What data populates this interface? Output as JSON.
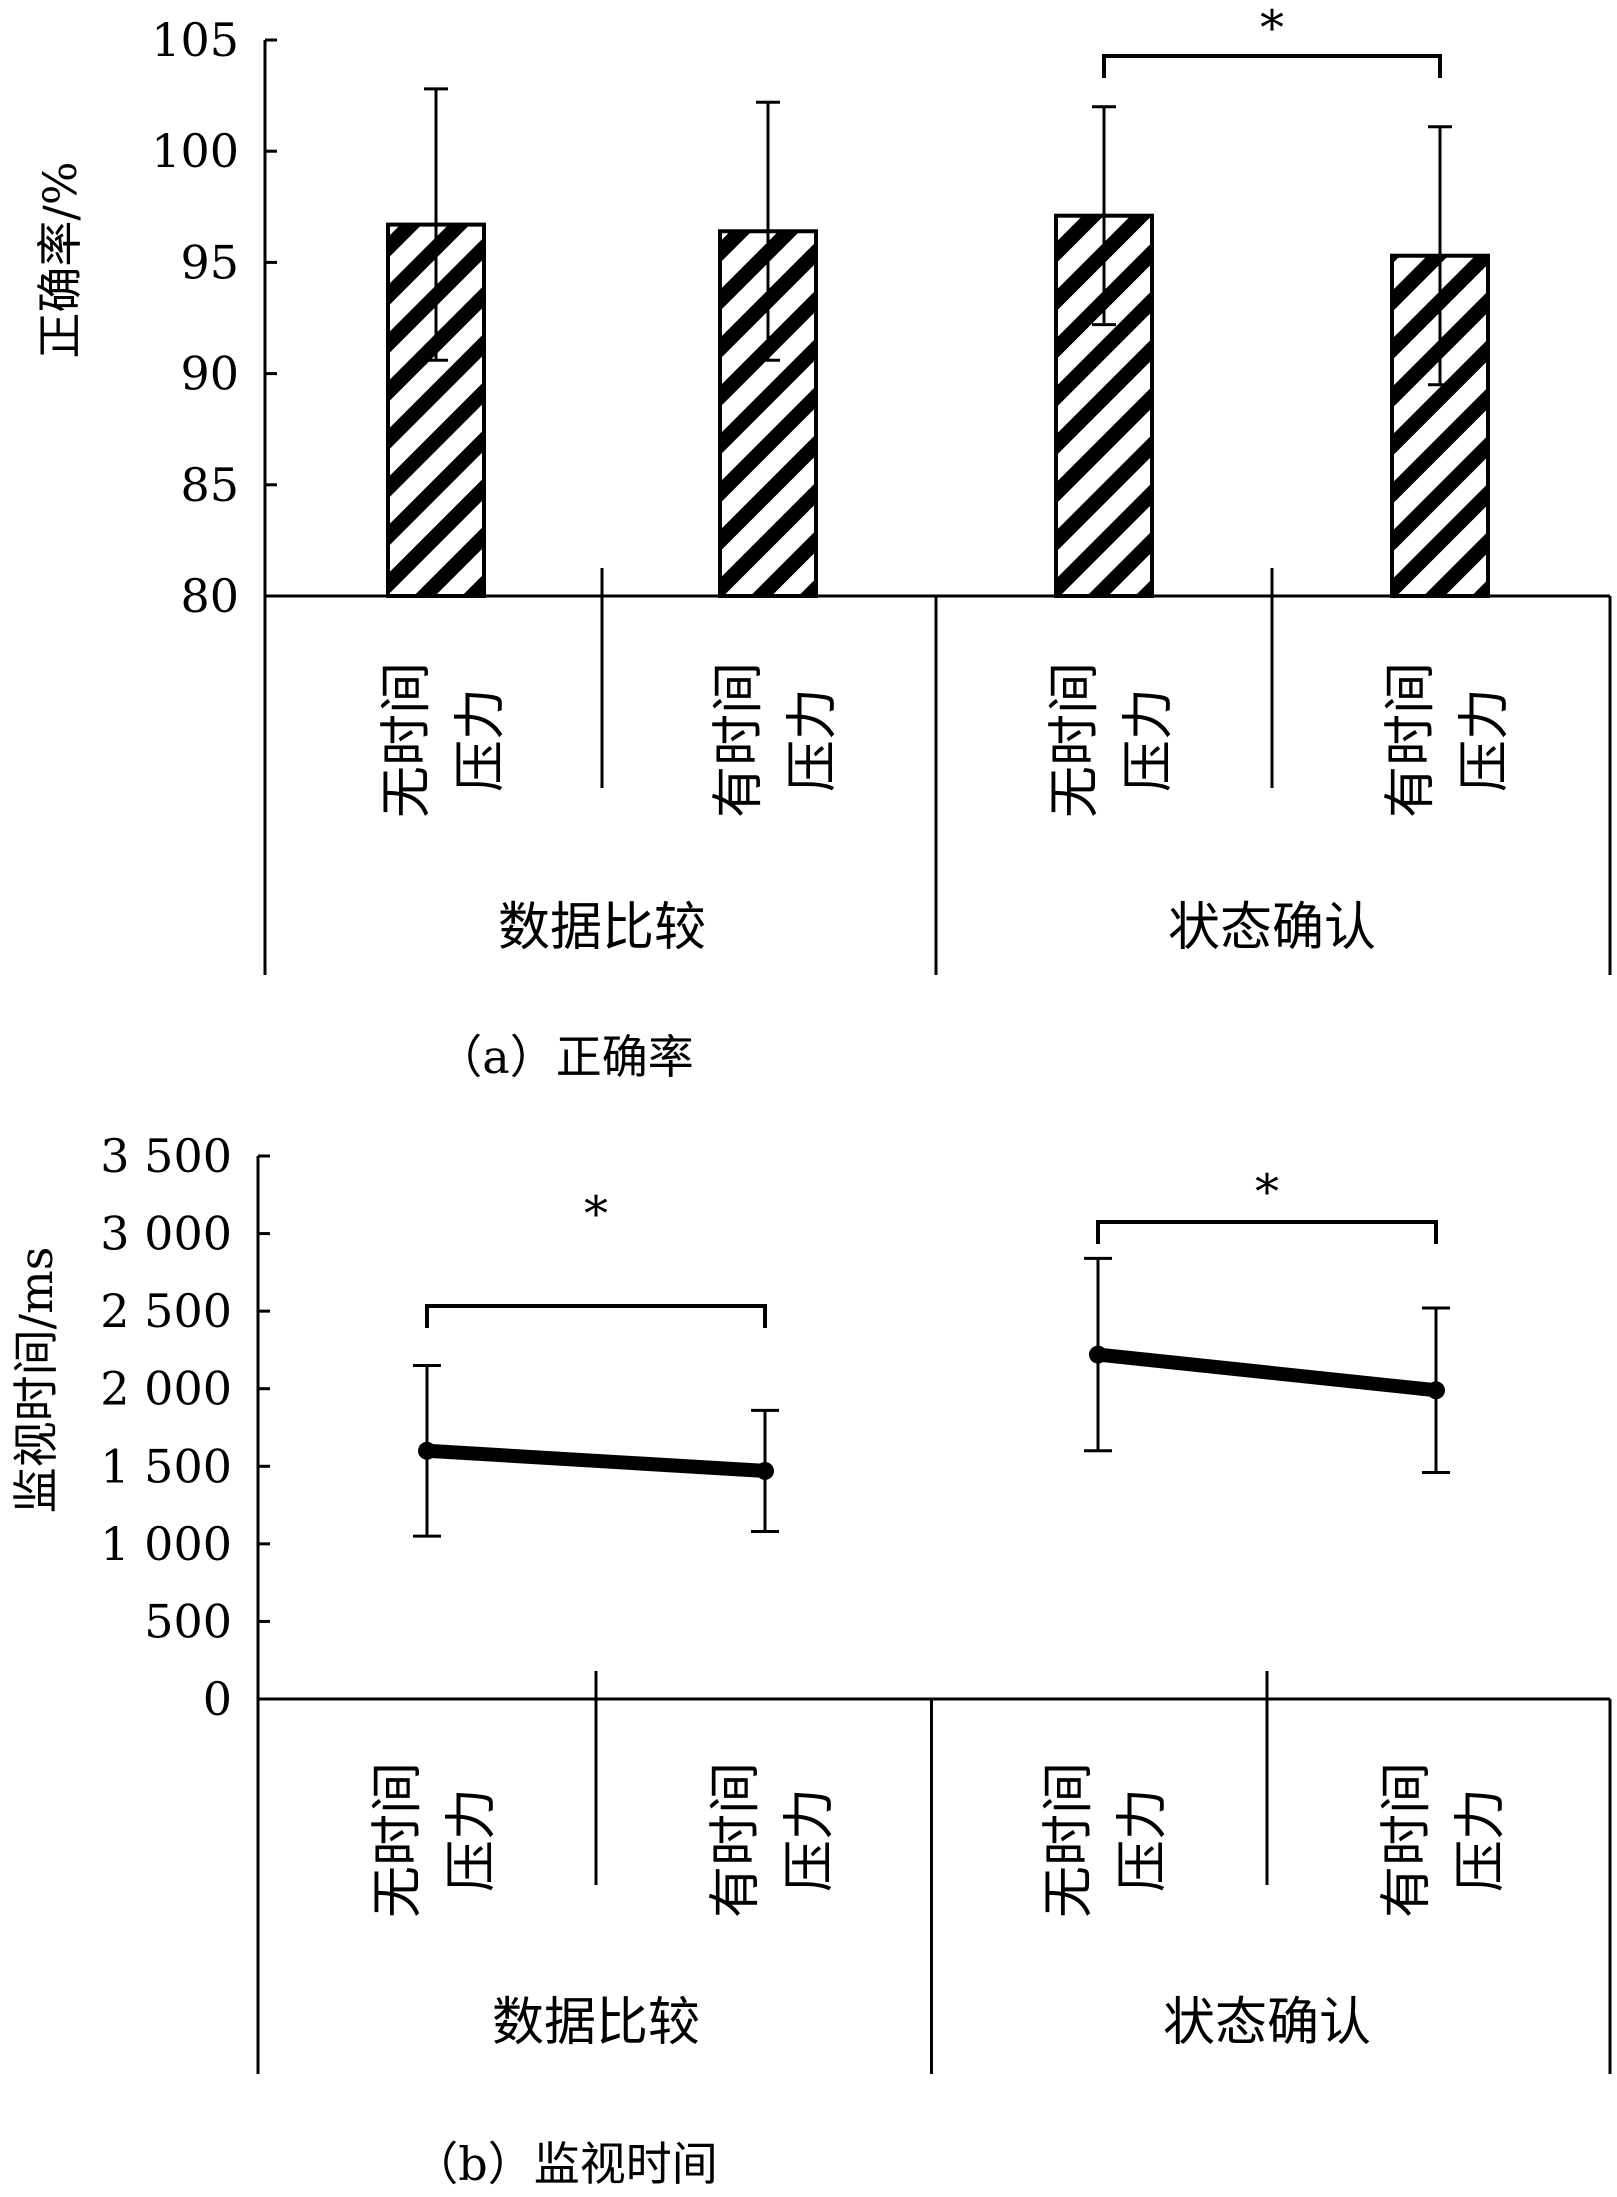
{
  "chart_data": [
    {
      "type": "bar",
      "caption": "（a）正确率",
      "ylabel": "正确率/%",
      "ylim": [
        80,
        105
      ],
      "yticks": [
        80,
        85,
        90,
        95,
        100,
        105
      ],
      "ytick_labels": [
        "80",
        "85",
        "90",
        "95",
        "100",
        "105"
      ],
      "groups": [
        {
          "label": "数据比较",
          "conditions": [
            "无时间\n压力",
            "有时间\n压力"
          ]
        },
        {
          "label": "状态确认",
          "conditions": [
            "无时间\n压力",
            "有时间\n压力"
          ]
        }
      ],
      "values": [
        96.7,
        96.4,
        97.1,
        95.3
      ],
      "errors": [
        6.1,
        5.8,
        4.9,
        5.8
      ],
      "significance": [
        {
          "between": [
            2,
            3
          ],
          "label": "*"
        }
      ],
      "bar_pattern": "diagonal-hatch",
      "grid": false
    },
    {
      "type": "line",
      "caption": "（b）监视时间",
      "ylabel": "监视时间/ms",
      "ylim": [
        0,
        3500
      ],
      "yticks": [
        0,
        500,
        1000,
        1500,
        2000,
        2500,
        3000,
        3500
      ],
      "ytick_labels": [
        "0",
        "500",
        "1 000",
        "1 500",
        "2 000",
        "2 500",
        "3 000",
        "3 500"
      ],
      "groups": [
        {
          "label": "数据比较",
          "conditions": [
            "无时间\n压力",
            "有时间\n压力"
          ]
        },
        {
          "label": "状态确认",
          "conditions": [
            "无时间\n压力",
            "有时间\n压力"
          ]
        }
      ],
      "values": [
        1600,
        1470,
        2220,
        1990
      ],
      "errors": [
        550,
        390,
        620,
        530
      ],
      "significance": [
        {
          "between": [
            0,
            1
          ],
          "label": "*"
        },
        {
          "between": [
            2,
            3
          ],
          "label": "*"
        }
      ],
      "grid": false
    }
  ]
}
